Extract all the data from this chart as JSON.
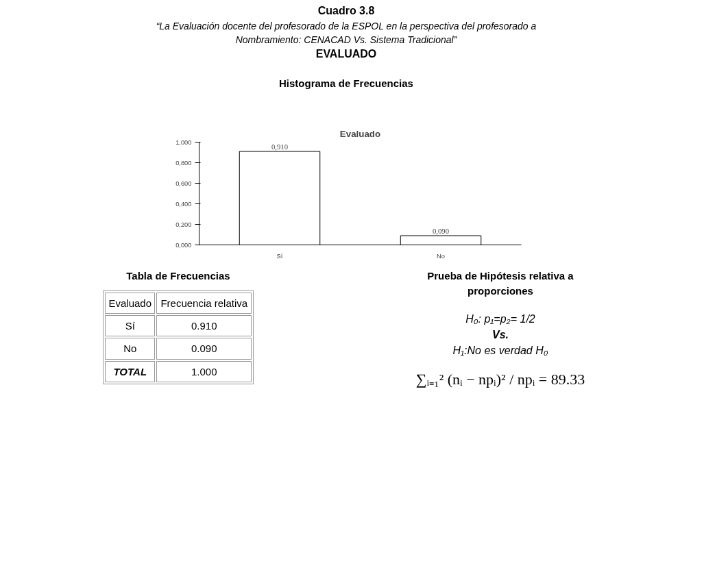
{
  "chart_data": {
    "type": "bar",
    "title": "Evaluado",
    "subtitle": "Histograma de Frecuencias",
    "categories": [
      "Sí",
      "No"
    ],
    "values": [
      0.91,
      0.09
    ],
    "color": "#ffffff",
    "value_labels": [
      "0,910",
      "0,090"
    ],
    "ylim": [
      0,
      1.0
    ],
    "yticks": [
      {
        "value": 0,
        "label": "0,000"
      },
      {
        "value": 0.2,
        "label": "0,200"
      },
      {
        "value": 0.4,
        "label": "0,400"
      },
      {
        "value": 0.6,
        "label": "0,600"
      },
      {
        "value": 0.8,
        "label": "0,800"
      },
      {
        "value": 1.0,
        "label": "1,000"
      }
    ],
    "grid": false,
    "annotations": [
      "Cuadro 3.8",
      "“La Evaluación docente del profesorado de la ESPOL en la perspectiva del profesorado a Nombramiento: CENACAD Vs. Sistema Tradicional”",
      "EVALUADO",
      "Tabla de Frecuencias",
      "Evaluado",
      "Frecuencia relativa",
      "Sí",
      "0.910",
      "No",
      "0.090",
      "TOTAL",
      "1.000",
      "Prueba de Hipótesis relativa a proporciones",
      "H₀:  p₁=p₂=  1/2",
      "Vs.",
      "H₁:No es verdad H₀",
      "∑ᵢ₌₁² (nᵢ − npᵢ)² / npᵢ = 89.33"
    ]
  }
}
